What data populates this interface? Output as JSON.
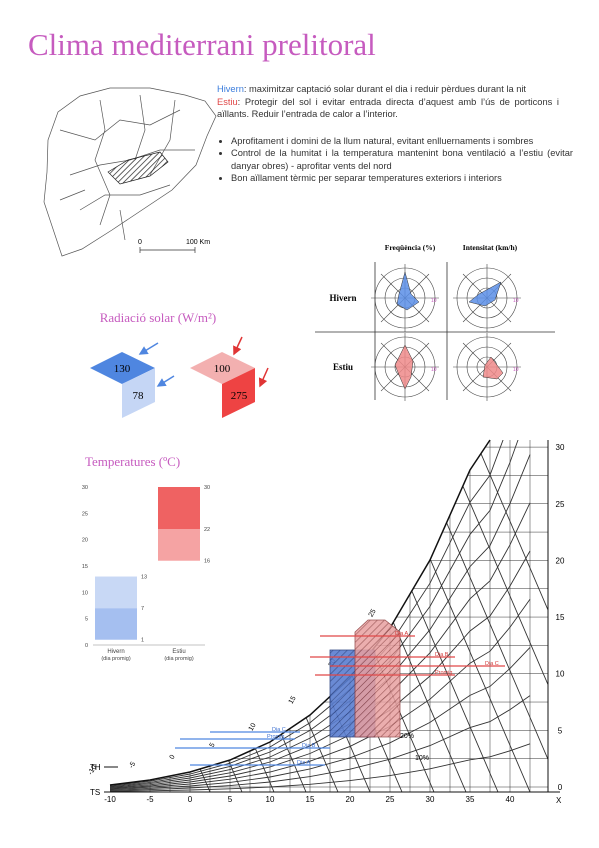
{
  "header": {
    "title": "Clima mediterrani prelitoral"
  },
  "intro": {
    "winter_label": "Hivern",
    "winter_text": ": maximitzar captació solar durant el dia i reduir pèrdues durant la nit",
    "summer_label": "Estiu",
    "summer_text": ": Protegir del sol i evitar entrada directa d’aquest amb l’ús de porticons i aïllants. Reduir l’entrada de calor a l’interior."
  },
  "bullets": [
    "Aprofitament i domini de la llum natural, evitant enlluernaments i sombres",
    "Control de la humitat i la temperatura mantenint bona ventilació a l’estiu (evitar danyar obres) - aprofitar vents del nord",
    "Bon aïllament tèrmic per separar temperatures exteriors i interiors"
  ],
  "map": {
    "scale_start": "0",
    "scale_end": "100 Km"
  },
  "wind": {
    "headers": [
      "Freqüència (%)",
      "Intensitat (km/h)"
    ],
    "rows": [
      "Hivern",
      "Estiu"
    ],
    "ring_label": "10"
  },
  "radiation": {
    "title": "Radiació solar (W/m²)",
    "winter": {
      "top": 130,
      "side": 78
    },
    "summer": {
      "top": 100,
      "side": 275
    }
  },
  "chart_data": {
    "type": "floating-bar",
    "title": "Temperatures (ºC)",
    "categories": [
      "Hivern",
      "Estiu"
    ],
    "sublabels": [
      "(dia promig)",
      "(dia promig)"
    ],
    "series": [
      {
        "colors": [
          "#a5bff0",
          "#f5a3a3"
        ],
        "values": [
          [
            1,
            7
          ],
          [
            16,
            22
          ]
        ]
      },
      {
        "colors": [
          "#c8d8f5",
          "#ef6262"
        ],
        "values": [
          [
            7,
            13
          ],
          [
            22,
            30
          ]
        ]
      }
    ],
    "ylim": [
      0,
      30
    ],
    "yticks": [
      0,
      5,
      10,
      15,
      20,
      25,
      30
    ]
  },
  "psychro": {
    "ts_label": "TS",
    "th_label": "TH",
    "x_label": "X",
    "ts_ticks": [
      -10,
      -5,
      0,
      5,
      10,
      15,
      20,
      25,
      30,
      35,
      40
    ],
    "right_ticks": [
      0,
      5,
      10,
      15,
      20,
      25,
      30
    ],
    "wet_bulb_ticks": [
      -10,
      -5,
      0,
      5,
      10,
      15,
      20,
      25
    ],
    "rh_labels": [
      "10%",
      "20%"
    ],
    "winter_lines": [
      "Dia C",
      "Promig",
      "Dia B",
      "Dia A"
    ],
    "summer_lines": [
      "Dia A",
      "Dia B",
      "Dia C",
      "Promig"
    ]
  }
}
